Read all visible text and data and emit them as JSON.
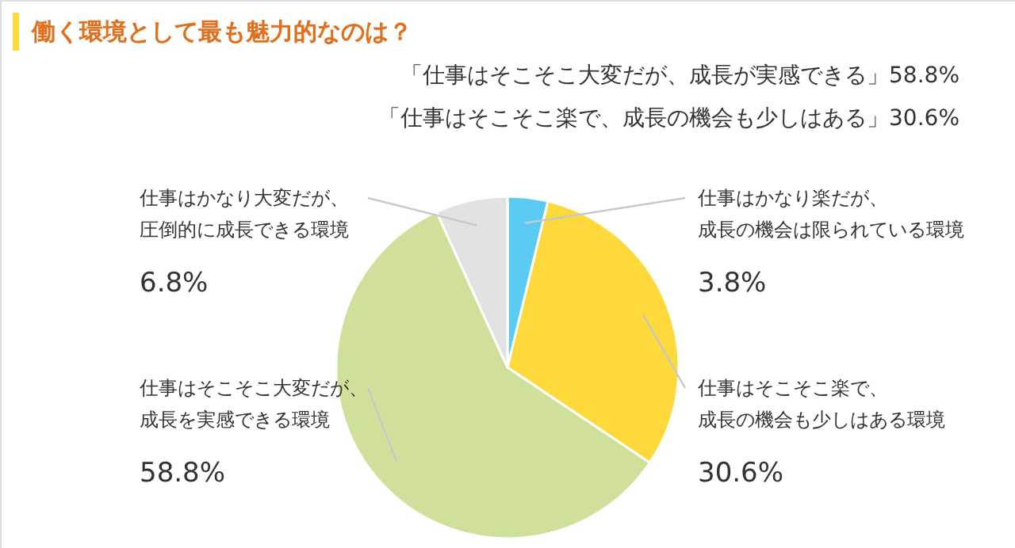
{
  "chart_data": {
    "type": "pie",
    "title": "働く環境として最も魅力的なのは？",
    "annotations": [
      "「仕事はそこそこ大変だが、成長が実感できる」58.8%",
      "「仕事はそこそこ楽で、成長の機会も少しはある」30.6%"
    ],
    "categories": [
      "仕事はかなり楽だが、成長の機会は限られている環境",
      "仕事はそこそこ楽で、成長の機会も少しはある環境",
      "仕事はそこそこ大変だが、成長を実感できる環境",
      "仕事はかなり大変だが、圧倒的に成長できる環境"
    ],
    "values": [
      3.8,
      30.6,
      58.8,
      6.8
    ],
    "value_labels": [
      "3.8%",
      "30.6%",
      "58.8%",
      "6.8%"
    ],
    "colors": [
      "#5ccbf3",
      "#fdd93c",
      "#cfe09a",
      "#e2e2e2"
    ]
  }
}
